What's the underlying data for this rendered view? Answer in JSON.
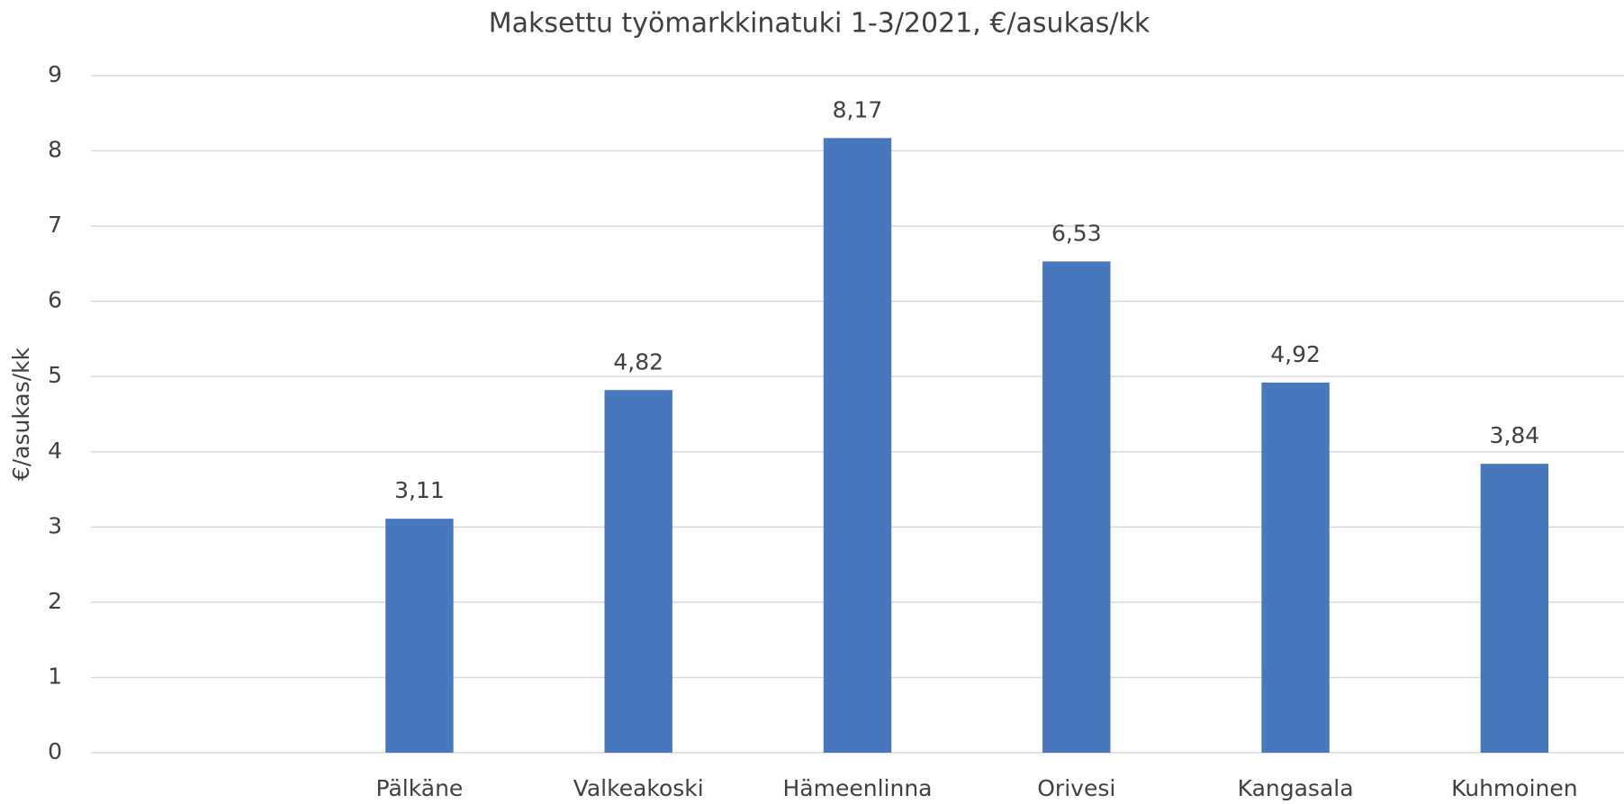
{
  "chart_data": {
    "type": "bar",
    "title": "Maksettu työmarkkinatuki 1-3/2021, €/asukas/kk",
    "y_label": "€/asukas/kk",
    "categories": [
      null,
      "Pälkäne",
      "Valkeakoski",
      "Hämeenlinna",
      "Orivesi",
      "Kangasala",
      "Kuhmoinen"
    ],
    "values": [
      null,
      3.11,
      4.82,
      8.17,
      6.53,
      4.92,
      3.84
    ],
    "value_labels": [
      null,
      "3,11",
      "4,82",
      "8,17",
      "6,53",
      "4,92",
      "3,84"
    ],
    "color": "#4877be",
    "ylim": [
      0,
      9
    ],
    "yticks": [
      0,
      1,
      2,
      3,
      4,
      5,
      6,
      7,
      8,
      9
    ],
    "grid": true
  }
}
